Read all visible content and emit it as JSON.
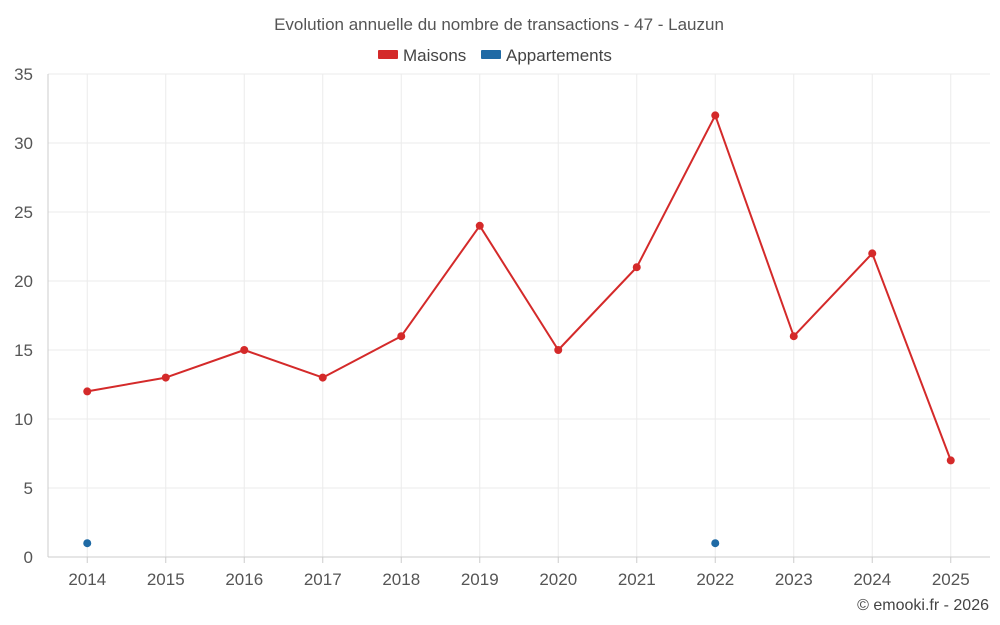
{
  "chart_data": {
    "type": "line",
    "title": "Evolution annuelle du nombre de transactions - 47 - Lauzun",
    "categories": [
      "2014",
      "2015",
      "2016",
      "2017",
      "2018",
      "2019",
      "2020",
      "2021",
      "2022",
      "2023",
      "2024",
      "2025"
    ],
    "series": [
      {
        "name": "Maisons",
        "color": "#d42a2a",
        "values": [
          12,
          13,
          15,
          13,
          16,
          24,
          15,
          21,
          32,
          16,
          22,
          7
        ]
      },
      {
        "name": "Appartements",
        "color": "#1f6aa5",
        "values": [
          1,
          null,
          null,
          null,
          null,
          null,
          null,
          null,
          1,
          null,
          null,
          null
        ]
      }
    ],
    "ylim": [
      0,
      35
    ],
    "yticks": [
      0,
      5,
      10,
      15,
      20,
      25,
      30,
      35
    ],
    "grid": true,
    "legend": "top-center",
    "xlabel": "",
    "ylabel": ""
  },
  "credit": "© emooki.fr - 2026"
}
